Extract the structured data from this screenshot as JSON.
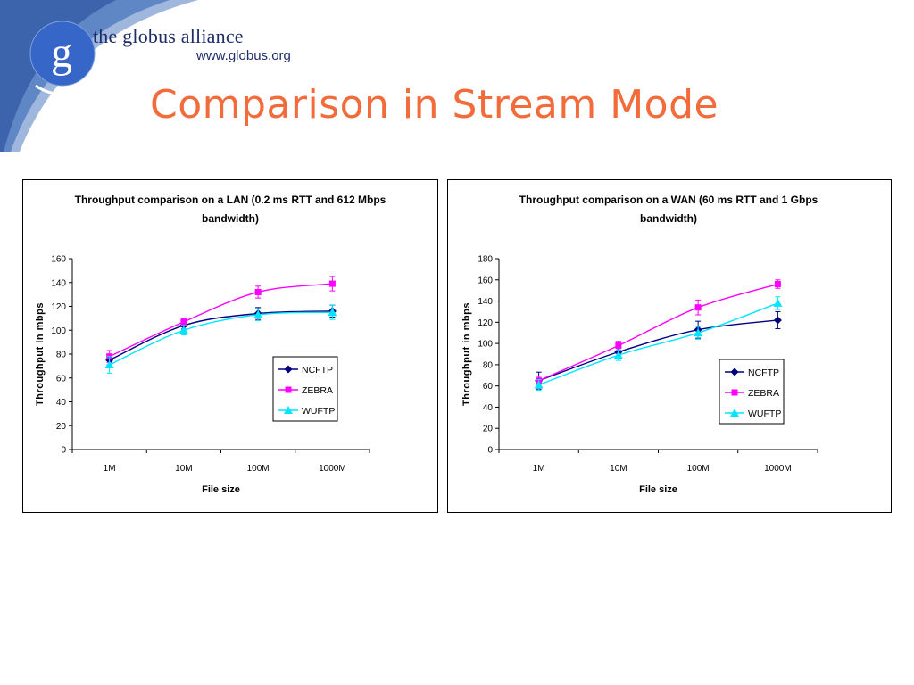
{
  "header": {
    "org_name": "the globus alliance",
    "org_url": "www.globus.org",
    "logo_letter": "g",
    "slide_title": "Comparison in Stream Mode"
  },
  "colors": {
    "title": "#f26b3a",
    "brand_blue": "#1e2c6a",
    "NCFTP": "#000080",
    "ZEBRA": "#ff00ff",
    "WUFTP": "#00e5ff"
  },
  "chart_data": [
    {
      "type": "line",
      "title_lines": [
        "Throughput comparison on a LAN (0.2 ms RTT and 612 Mbps",
        "bandwidth)"
      ],
      "xlabel": "File size",
      "ylabel": "Throughput in mbps",
      "categories": [
        "1M",
        "10M",
        "100M",
        "1000M"
      ],
      "ylim": [
        0,
        160
      ],
      "yticks": [
        0,
        20,
        40,
        60,
        80,
        100,
        120,
        140,
        160
      ],
      "grid": false,
      "legend": "right",
      "series": [
        {
          "name": "NCFTP",
          "marker": "diamond",
          "values": [
            75,
            104,
            114,
            116
          ],
          "err": [
            4,
            3,
            5,
            5
          ]
        },
        {
          "name": "ZEBRA",
          "marker": "square",
          "values": [
            78,
            107,
            132,
            139
          ],
          "err": [
            5,
            3,
            5,
            6
          ]
        },
        {
          "name": "WUFTP",
          "marker": "triangle",
          "values": [
            71,
            100,
            113,
            115
          ],
          "err": [
            7,
            4,
            5,
            6
          ]
        }
      ]
    },
    {
      "type": "line",
      "title_lines": [
        "Throughput comparison on a WAN (60 ms RTT and 1 Gbps",
        "bandwidth)"
      ],
      "xlabel": "File size",
      "ylabel": "Throughput in mbps",
      "categories": [
        "1M",
        "10M",
        "100M",
        "1000M"
      ],
      "ylim": [
        0,
        180
      ],
      "yticks": [
        0,
        20,
        40,
        60,
        80,
        100,
        120,
        140,
        160,
        180
      ],
      "grid": false,
      "legend": "right",
      "series": [
        {
          "name": "NCFTP",
          "marker": "diamond",
          "values": [
            65,
            92,
            113,
            122
          ],
          "err": [
            8,
            4,
            8,
            8
          ]
        },
        {
          "name": "ZEBRA",
          "marker": "square",
          "values": [
            65,
            98,
            134,
            156
          ],
          "err": [
            4,
            4,
            7,
            4
          ]
        },
        {
          "name": "WUFTP",
          "marker": "triangle",
          "values": [
            61,
            89,
            110,
            138
          ],
          "err": [
            5,
            5,
            6,
            6
          ]
        }
      ]
    }
  ]
}
